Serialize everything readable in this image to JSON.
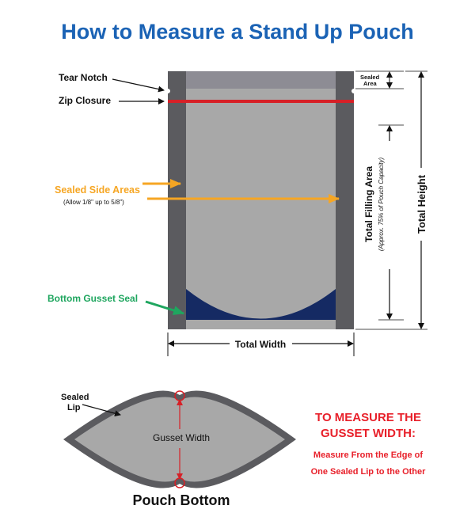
{
  "title": "How to Measure a Stand Up Pouch",
  "labels": {
    "tear_notch": "Tear Notch",
    "zip_closure": "Zip Closure",
    "sealed_area_line1": "Sealed",
    "sealed_area_line2": "Area",
    "sealed_side_areas": "Sealed Side Areas",
    "sealed_side_note": "(Allow 1/8\" up to 5/8\")",
    "bottom_gusset_seal": "Bottom Gusset Seal",
    "total_width": "Total Width",
    "total_filling_area": "Total Filling Area",
    "filling_note": "(Approx. 75% of Pouch Capacity)",
    "total_height": "Total Height",
    "sealed_lip_line1": "Sealed",
    "sealed_lip_line2": "Lip",
    "gusset_width": "Gusset Width",
    "pouch_bottom": "Pouch Bottom"
  },
  "instructions": {
    "heading_line1": "TO MEASURE THE",
    "heading_line2": "GUSSET WIDTH:",
    "body_line1": "Measure From the Edge of",
    "body_line2": "One Sealed Lip to the Other"
  },
  "colors": {
    "title": "#1b63b5",
    "side_seal": "#5b5b5f",
    "top_seal": "#8d8c94",
    "body": "#a8a8a8",
    "zip": "#d62027",
    "gusset": "#152a63",
    "orange_arrow": "#f6a623",
    "green_arrow": "#1fa65f",
    "red_text": "#e8202a"
  }
}
